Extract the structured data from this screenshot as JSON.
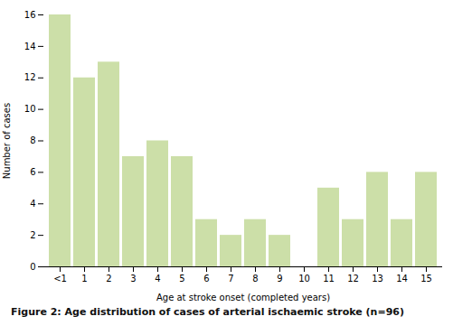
{
  "chart_data": {
    "type": "bar",
    "categories": [
      "<1",
      "1",
      "2",
      "3",
      "4",
      "5",
      "6",
      "7",
      "8",
      "9",
      "10",
      "11",
      "12",
      "13",
      "14",
      "15"
    ],
    "values": [
      16,
      12,
      13,
      7,
      8,
      7,
      3,
      2,
      3,
      2,
      0,
      5,
      3,
      6,
      3,
      6
    ],
    "color": "#ccdfa8",
    "xlabel": "Age at stroke onset (completed years)",
    "ylabel": "Number of cases",
    "ylim": [
      0,
      16
    ],
    "yticks": [
      0,
      2,
      4,
      6,
      8,
      10,
      12,
      14,
      16
    ],
    "grid": false,
    "caption": "Figure 2: Age distribution of cases of arterial ischaemic stroke (n=96)"
  }
}
